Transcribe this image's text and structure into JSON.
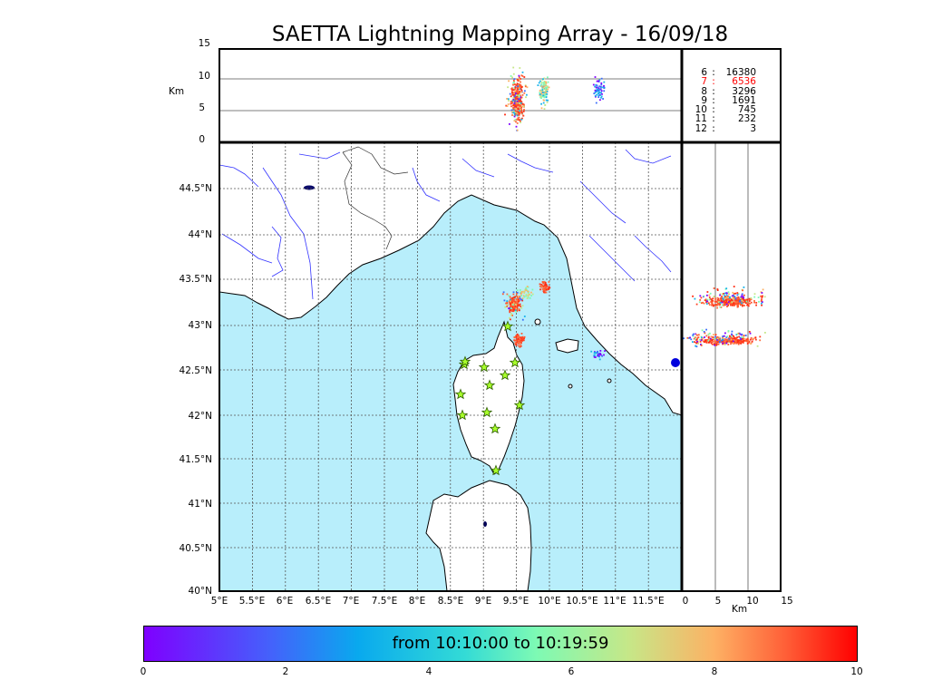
{
  "title": "SAETTA Lightning Mapping Array - 16/09/18",
  "top_panel": {
    "y_axis_label": "Km",
    "y_ticks": [
      "15",
      "10",
      "5",
      "0"
    ]
  },
  "side_panel": {
    "x_axis_label": "Km",
    "x_ticks": [
      "0",
      "5",
      "10",
      "15"
    ]
  },
  "map": {
    "lat_ticks": [
      "44.5°N",
      "44°N",
      "43.5°N",
      "43°N",
      "42.5°N",
      "42°N",
      "41.5°N",
      "41°N",
      "40.5°N",
      "40°N"
    ],
    "lon_ticks": [
      "5°E",
      "5.5°E",
      "6°E",
      "6.5°E",
      "7°E",
      "7.5°E",
      "8°E",
      "8.5°E",
      "9°E",
      "9.5°E",
      "10°E",
      "10.5°E",
      "11°E",
      "11.5°E"
    ],
    "sea_color": "#b8eefb",
    "coast_color": "#000000",
    "river_color": "#3333ff",
    "stations_color": "#a8ff2a",
    "station_count": 13
  },
  "station_counts": [
    {
      "stations": "6",
      "sep": ":",
      "sources": "16380",
      "color": "#000000"
    },
    {
      "stations": "7",
      "sep": ":",
      "sources": "6536",
      "color": "#ff0000"
    },
    {
      "stations": "8",
      "sep": ":",
      "sources": "3296",
      "color": "#000000"
    },
    {
      "stations": "9",
      "sep": ":",
      "sources": "1691",
      "color": "#000000"
    },
    {
      "stations": "10",
      "sep": ":",
      "sources": "745",
      "color": "#000000"
    },
    {
      "stations": "11",
      "sep": ":",
      "sources": "232",
      "color": "#000000"
    },
    {
      "stations": "12",
      "sep": ":",
      "sources": "3",
      "color": "#000000"
    }
  ],
  "colorbar": {
    "text": "from 10:10:00 to 10:19:59",
    "ticks": [
      "0",
      "2",
      "4",
      "6",
      "8",
      "10"
    ]
  }
}
